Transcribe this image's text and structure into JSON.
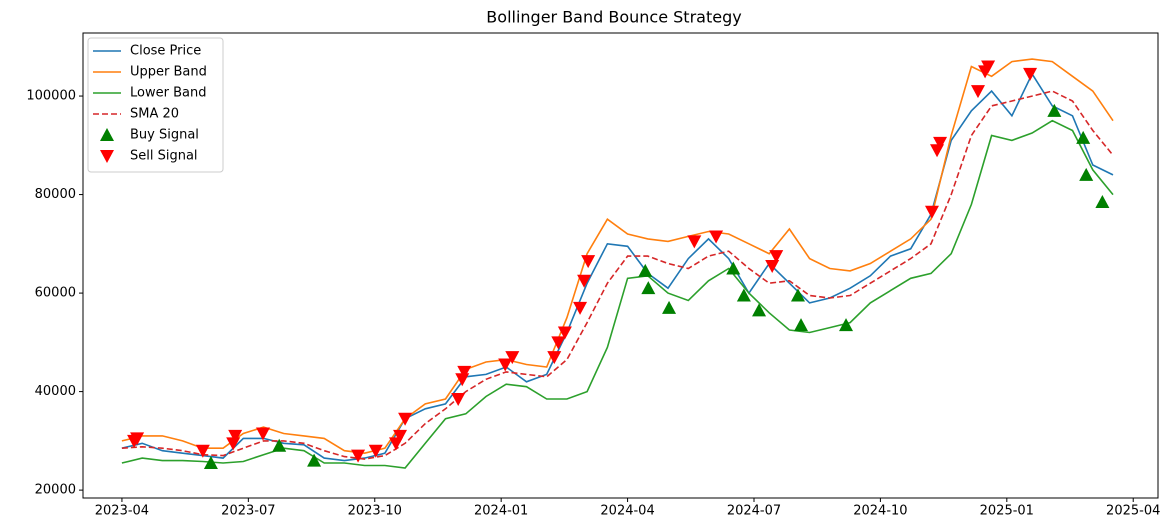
{
  "chart_data": {
    "type": "line",
    "title": "Bollinger Band Bounce Strategy",
    "x": [
      2023.25,
      2023.29,
      2023.33,
      2023.37,
      2023.41,
      2023.45,
      2023.49,
      2023.53,
      2023.57,
      2023.61,
      2023.65,
      2023.69,
      2023.73,
      2023.77,
      2023.81,
      2023.85,
      2023.89,
      2023.93,
      2023.97,
      2024.01,
      2024.05,
      2024.09,
      2024.13,
      2024.17,
      2024.21,
      2024.25,
      2024.29,
      2024.33,
      2024.37,
      2024.41,
      2024.45,
      2024.49,
      2024.53,
      2024.57,
      2024.61,
      2024.65,
      2024.69,
      2024.73,
      2024.77,
      2024.81,
      2024.85,
      2024.89,
      2024.93,
      2024.97,
      2025.01,
      2025.05,
      2025.09,
      2025.13,
      2025.17,
      2025.21
    ],
    "series": [
      {
        "name": "Close Price",
        "color": "#1f77b4",
        "style": "solid",
        "values": [
          28500,
          29500,
          28000,
          27500,
          27000,
          26500,
          30500,
          30500,
          29500,
          29200,
          26500,
          26000,
          26500,
          27500,
          34500,
          36500,
          37500,
          43000,
          43500,
          45000,
          42000,
          43500,
          52000,
          62000,
          70000,
          69500,
          64000,
          61000,
          67000,
          71000,
          67000,
          60000,
          66000,
          62000,
          58000,
          59000,
          61000,
          63500,
          67500,
          69000,
          76000,
          91000,
          97000,
          101000,
          96000,
          104500,
          98000,
          96000,
          86000,
          84000
        ]
      },
      {
        "name": "Upper Band",
        "color": "#ff7f0e",
        "style": "solid",
        "values": [
          30000,
          31000,
          31000,
          30000,
          28500,
          28500,
          31500,
          32800,
          31500,
          31000,
          30500,
          28000,
          27500,
          28500,
          34500,
          37500,
          38500,
          44500,
          46000,
          46500,
          45500,
          45000,
          55000,
          68000,
          75000,
          72000,
          71000,
          70500,
          71500,
          72500,
          72000,
          70000,
          68000,
          73000,
          67000,
          65000,
          64500,
          66000,
          68500,
          71000,
          75000,
          92000,
          106000,
          104000,
          107000,
          107500,
          107000,
          104000,
          101000,
          95000
        ]
      },
      {
        "name": "Lower Band",
        "color": "#2ca02c",
        "style": "solid",
        "values": [
          25500,
          26500,
          26000,
          26000,
          25800,
          25500,
          25800,
          27200,
          28500,
          28000,
          25500,
          25500,
          25000,
          25000,
          24500,
          29500,
          34500,
          35500,
          39000,
          41500,
          41000,
          38500,
          38500,
          40000,
          49000,
          63000,
          63500,
          60000,
          58500,
          62500,
          65000,
          60000,
          56000,
          52500,
          52000,
          53000,
          54000,
          58000,
          60500,
          63000,
          64000,
          68000,
          78000,
          92000,
          91000,
          92500,
          95000,
          93000,
          85000,
          80000
        ]
      },
      {
        "name": "SMA 20",
        "color": "#d62728",
        "style": "dashed",
        "values": [
          28500,
          28800,
          28500,
          28000,
          27200,
          27000,
          28500,
          30000,
          30000,
          29500,
          28000,
          26800,
          26300,
          27000,
          29500,
          33500,
          36500,
          40000,
          42500,
          44000,
          43500,
          43000,
          46500,
          54000,
          62000,
          67500,
          67500,
          66000,
          65000,
          67500,
          68500,
          65000,
          62000,
          62500,
          59500,
          59000,
          59500,
          62000,
          64500,
          67000,
          70000,
          80000,
          92000,
          98000,
          99000,
          100000,
          101000,
          99000,
          93000,
          88000
        ]
      },
      {
        "name": "Buy Signal",
        "color": "#008000",
        "marker": "up",
        "x": [
          2023.426,
          2023.561,
          2023.63,
          2024.285,
          2024.291,
          2024.332,
          2024.459,
          2024.48,
          2024.51,
          2024.587,
          2024.593,
          2024.682,
          2025.094,
          2025.151,
          2025.157,
          2025.189
        ],
        "values": [
          25500,
          29000,
          26000,
          64500,
          61000,
          57000,
          65000,
          59500,
          56500,
          59500,
          53500,
          53500,
          97000,
          91500,
          84000,
          78500
        ]
      },
      {
        "name": "Sell Signal",
        "color": "#ff0000",
        "marker": "down",
        "x": [
          2023.274,
          2023.28,
          2023.41,
          2023.47,
          2023.474,
          2023.529,
          2023.717,
          2023.752,
          2023.792,
          2023.8,
          2023.81,
          2023.915,
          2023.923,
          2023.927,
          2024.008,
          2024.022,
          2024.105,
          2024.113,
          2024.126,
          2024.156,
          2024.164,
          2024.172,
          2024.382,
          2024.425,
          2024.536,
          2024.544,
          2024.852,
          2024.862,
          2024.868,
          2024.943,
          2024.957,
          2024.963,
          2025.046
        ],
        "values": [
          30000,
          30500,
          28000,
          29500,
          31000,
          31500,
          27000,
          28000,
          29500,
          31000,
          34500,
          38500,
          42500,
          44000,
          45500,
          47000,
          47000,
          50000,
          52000,
          57000,
          62500,
          66500,
          70500,
          71500,
          65500,
          67500,
          76500,
          89000,
          90500,
          101000,
          105000,
          106000,
          104500
        ]
      }
    ],
    "xlim": [
      2023.173,
      2025.299
    ],
    "xticks": [
      {
        "value": 2023.25,
        "label": "2023-04"
      },
      {
        "value": 2023.5,
        "label": "2023-07"
      },
      {
        "value": 2023.75,
        "label": "2023-10"
      },
      {
        "value": 2024.0,
        "label": "2024-01"
      },
      {
        "value": 2024.25,
        "label": "2024-04"
      },
      {
        "value": 2024.5,
        "label": "2024-07"
      },
      {
        "value": 2024.75,
        "label": "2024-10"
      },
      {
        "value": 2025.0,
        "label": "2025-01"
      },
      {
        "value": 2025.25,
        "label": "2025-04"
      }
    ],
    "ylim": [
      18400,
      112800
    ],
    "yticks": [
      20000,
      40000,
      60000,
      80000,
      100000
    ],
    "grid": false,
    "legend": "upper left"
  }
}
